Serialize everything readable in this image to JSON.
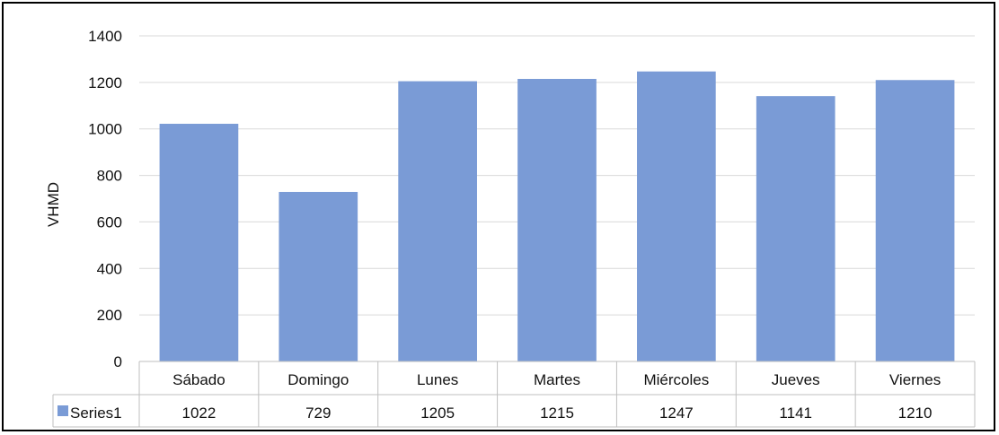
{
  "chart_data": {
    "type": "bar",
    "title": "",
    "xlabel": "",
    "ylabel": "VHMD",
    "ylim": [
      0,
      1400
    ],
    "yticks": [
      0,
      200,
      400,
      600,
      800,
      1000,
      1200,
      1400
    ],
    "grid": true,
    "categories": [
      "Sábado",
      "Domingo",
      "Lunes",
      "Martes",
      "Miércoles",
      "Jueves",
      "Viernes"
    ],
    "series": [
      {
        "name": "Series1",
        "values": [
          1022,
          729,
          1205,
          1215,
          1247,
          1141,
          1210
        ],
        "color": "#7a9bd6"
      }
    ],
    "data_table": {
      "shown": true,
      "legend_key": true
    }
  },
  "colors": {
    "bar": "#7a9bd6",
    "grid": "#d9d9d9",
    "table_border": "#bfbfbf"
  }
}
